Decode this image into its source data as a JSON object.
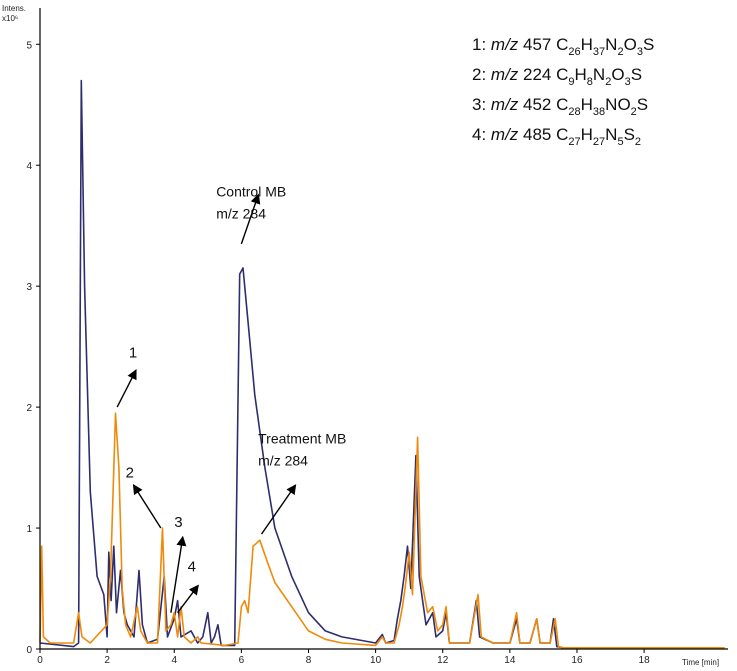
{
  "chart_data": {
    "type": "line",
    "ylabel": "Intens.",
    "y_multiplier": "x10⁶",
    "xlabel": "Time [min]",
    "xlim": [
      0,
      20.5
    ],
    "ylim": [
      0,
      5.3
    ],
    "x_ticks": [
      "0",
      "2",
      "4",
      "6",
      "8",
      "10",
      "12",
      "14",
      "16",
      "18"
    ],
    "y_ticks": [
      "0",
      "1",
      "2",
      "3",
      "4",
      "5"
    ],
    "colors": {
      "control": "#2e2e6e",
      "treatment": "#f08a0a",
      "axis": "#000000",
      "arrow": "#000000"
    },
    "series": [
      {
        "key": "control",
        "points": [
          [
            0,
            0.05
          ],
          [
            1.0,
            0.02
          ],
          [
            1.15,
            0.05
          ],
          [
            1.23,
            4.7
          ],
          [
            1.33,
            3.0
          ],
          [
            1.5,
            1.3
          ],
          [
            1.7,
            0.6
          ],
          [
            1.9,
            0.45
          ],
          [
            2.0,
            0.1
          ],
          [
            2.05,
            0.8
          ],
          [
            2.12,
            0.4
          ],
          [
            2.2,
            0.85
          ],
          [
            2.28,
            0.3
          ],
          [
            2.4,
            0.65
          ],
          [
            2.5,
            0.3
          ],
          [
            2.6,
            0.2
          ],
          [
            2.8,
            0.1
          ],
          [
            2.95,
            0.65
          ],
          [
            3.05,
            0.2
          ],
          [
            3.2,
            0.05
          ],
          [
            3.5,
            0.08
          ],
          [
            3.7,
            0.6
          ],
          [
            3.8,
            0.1
          ],
          [
            4.0,
            0.25
          ],
          [
            4.1,
            0.4
          ],
          [
            4.2,
            0.1
          ],
          [
            4.5,
            0.15
          ],
          [
            4.7,
            0.05
          ],
          [
            4.85,
            0.1
          ],
          [
            5.0,
            0.3
          ],
          [
            5.1,
            0.05
          ],
          [
            5.2,
            0.1
          ],
          [
            5.3,
            0.2
          ],
          [
            5.4,
            0.03
          ],
          [
            5.8,
            0.03
          ],
          [
            5.95,
            3.1
          ],
          [
            6.05,
            3.15
          ],
          [
            6.2,
            2.7
          ],
          [
            6.4,
            2.1
          ],
          [
            6.7,
            1.5
          ],
          [
            7.0,
            1.0
          ],
          [
            7.5,
            0.6
          ],
          [
            8.0,
            0.3
          ],
          [
            8.5,
            0.15
          ],
          [
            9.0,
            0.1
          ],
          [
            10.0,
            0.05
          ],
          [
            10.2,
            0.12
          ],
          [
            10.3,
            0.05
          ],
          [
            10.55,
            0.07
          ],
          [
            10.65,
            0.25
          ],
          [
            10.75,
            0.4
          ],
          [
            10.85,
            0.6
          ],
          [
            10.95,
            0.85
          ],
          [
            11.05,
            0.5
          ],
          [
            11.2,
            1.6
          ],
          [
            11.3,
            0.6
          ],
          [
            11.5,
            0.2
          ],
          [
            11.7,
            0.3
          ],
          [
            11.8,
            0.1
          ],
          [
            12.0,
            0.15
          ],
          [
            12.1,
            0.3
          ],
          [
            12.2,
            0.05
          ],
          [
            12.8,
            0.05
          ],
          [
            13.0,
            0.4
          ],
          [
            13.1,
            0.1
          ],
          [
            13.5,
            0.05
          ],
          [
            14.0,
            0.05
          ],
          [
            14.2,
            0.25
          ],
          [
            14.3,
            0.05
          ],
          [
            14.6,
            0.05
          ],
          [
            14.8,
            0.25
          ],
          [
            14.9,
            0.05
          ],
          [
            15.2,
            0.05
          ],
          [
            15.3,
            0.25
          ],
          [
            15.4,
            0.02
          ],
          [
            15.6,
            0.01
          ],
          [
            20.4,
            0.01
          ]
        ]
      },
      {
        "key": "treatment",
        "points": [
          [
            0,
            0.05
          ],
          [
            0.05,
            0.85
          ],
          [
            0.1,
            0.1
          ],
          [
            0.3,
            0.05
          ],
          [
            1.0,
            0.05
          ],
          [
            1.15,
            0.3
          ],
          [
            1.25,
            0.1
          ],
          [
            1.5,
            0.05
          ],
          [
            2.0,
            0.2
          ],
          [
            2.1,
            0.6
          ],
          [
            2.25,
            1.95
          ],
          [
            2.35,
            1.5
          ],
          [
            2.45,
            0.5
          ],
          [
            2.55,
            0.2
          ],
          [
            2.7,
            0.1
          ],
          [
            2.9,
            0.35
          ],
          [
            3.0,
            0.15
          ],
          [
            3.2,
            0.05
          ],
          [
            3.5,
            0.05
          ],
          [
            3.65,
            1.0
          ],
          [
            3.75,
            0.15
          ],
          [
            3.9,
            0.2
          ],
          [
            4.0,
            0.3
          ],
          [
            4.1,
            0.1
          ],
          [
            4.2,
            0.35
          ],
          [
            4.3,
            0.1
          ],
          [
            4.5,
            0.05
          ],
          [
            4.7,
            0.1
          ],
          [
            4.8,
            0.05
          ],
          [
            5.5,
            0.03
          ],
          [
            5.9,
            0.05
          ],
          [
            6.0,
            0.35
          ],
          [
            6.1,
            0.4
          ],
          [
            6.2,
            0.3
          ],
          [
            6.35,
            0.85
          ],
          [
            6.55,
            0.9
          ],
          [
            6.8,
            0.7
          ],
          [
            7.0,
            0.55
          ],
          [
            7.5,
            0.35
          ],
          [
            8.0,
            0.15
          ],
          [
            8.5,
            0.08
          ],
          [
            9.0,
            0.05
          ],
          [
            10.0,
            0.03
          ],
          [
            10.2,
            0.1
          ],
          [
            10.3,
            0.05
          ],
          [
            10.55,
            0.05
          ],
          [
            10.7,
            0.2
          ],
          [
            10.8,
            0.35
          ],
          [
            10.9,
            0.55
          ],
          [
            11.0,
            0.8
          ],
          [
            11.1,
            0.45
          ],
          [
            11.25,
            1.75
          ],
          [
            11.35,
            0.6
          ],
          [
            11.55,
            0.3
          ],
          [
            11.7,
            0.35
          ],
          [
            11.85,
            0.15
          ],
          [
            12.0,
            0.2
          ],
          [
            12.1,
            0.35
          ],
          [
            12.2,
            0.05
          ],
          [
            12.8,
            0.05
          ],
          [
            13.05,
            0.45
          ],
          [
            13.15,
            0.1
          ],
          [
            13.5,
            0.05
          ],
          [
            14.0,
            0.05
          ],
          [
            14.2,
            0.3
          ],
          [
            14.3,
            0.05
          ],
          [
            14.6,
            0.05
          ],
          [
            14.8,
            0.25
          ],
          [
            14.9,
            0.05
          ],
          [
            15.2,
            0.05
          ],
          [
            15.35,
            0.25
          ],
          [
            15.45,
            0.02
          ],
          [
            15.6,
            0.01
          ],
          [
            20.4,
            0.01
          ]
        ]
      }
    ],
    "annotations": [
      {
        "id": "ann-control",
        "lines": [
          "Control MB",
          "m/z 284"
        ],
        "tx": 5.25,
        "ty": 3.74,
        "arrow_from": [
          6.0,
          3.35
        ],
        "arrow_to": [
          6.5,
          3.75
        ]
      },
      {
        "id": "ann-treatment",
        "lines": [
          "Treatment MB",
          "m/z 284"
        ],
        "tx": 6.5,
        "ty": 1.7,
        "arrow_from": [
          6.6,
          0.95
        ],
        "arrow_to": [
          7.6,
          1.35
        ]
      },
      {
        "id": "ann-peak1",
        "lines": [
          "1"
        ],
        "tx": 2.65,
        "ty": 2.41,
        "arrow_from": [
          2.3,
          2.0
        ],
        "arrow_to": [
          2.85,
          2.3
        ]
      },
      {
        "id": "ann-peak2",
        "lines": [
          "2"
        ],
        "tx": 2.55,
        "ty": 1.42,
        "arrow_from": [
          3.6,
          1.0
        ],
        "arrow_to": [
          2.8,
          1.35
        ]
      },
      {
        "id": "ann-peak3",
        "lines": [
          "3"
        ],
        "tx": 4.0,
        "ty": 1.01,
        "arrow_from": [
          3.9,
          0.3
        ],
        "arrow_to": [
          4.25,
          0.92
        ]
      },
      {
        "id": "ann-peak4",
        "lines": [
          "4"
        ],
        "tx": 4.4,
        "ty": 0.64,
        "arrow_from": [
          4.1,
          0.3
        ],
        "arrow_to": [
          4.7,
          0.52
        ]
      }
    ]
  },
  "legend": {
    "entries": [
      {
        "prefix": "1: ",
        "mz": "m/z",
        "mass": " 457 ",
        "formula": [
          [
            "C",
            ""
          ],
          [
            "26",
            "sub"
          ],
          [
            "H",
            ""
          ],
          [
            "37",
            "sub"
          ],
          [
            "N",
            ""
          ],
          [
            "2",
            "sub"
          ],
          [
            "O",
            ""
          ],
          [
            "3",
            "sub"
          ],
          [
            "S",
            ""
          ]
        ]
      },
      {
        "prefix": "2: ",
        "mz": "m/z",
        "mass": " 224 ",
        "formula": [
          [
            "C",
            ""
          ],
          [
            "9",
            "sub"
          ],
          [
            "H",
            ""
          ],
          [
            "8",
            "sub"
          ],
          [
            "N",
            ""
          ],
          [
            "2",
            "sub"
          ],
          [
            "O",
            ""
          ],
          [
            "3",
            "sub"
          ],
          [
            "S",
            ""
          ]
        ]
      },
      {
        "prefix": "3: ",
        "mz": "m/z",
        "mass": " 452 ",
        "formula": [
          [
            "C",
            ""
          ],
          [
            "28",
            "sub"
          ],
          [
            "H",
            ""
          ],
          [
            "38",
            "sub"
          ],
          [
            "NO",
            ""
          ],
          [
            "2",
            "sub"
          ],
          [
            "S",
            ""
          ]
        ]
      },
      {
        "prefix": "4: ",
        "mz": "m/z",
        "mass": " 485 ",
        "formula": [
          [
            "C",
            ""
          ],
          [
            "27",
            "sub"
          ],
          [
            "H",
            ""
          ],
          [
            "27",
            "sub"
          ],
          [
            "N",
            ""
          ],
          [
            "5",
            "sub"
          ],
          [
            "S",
            ""
          ],
          [
            "2",
            "sub"
          ]
        ]
      }
    ]
  }
}
